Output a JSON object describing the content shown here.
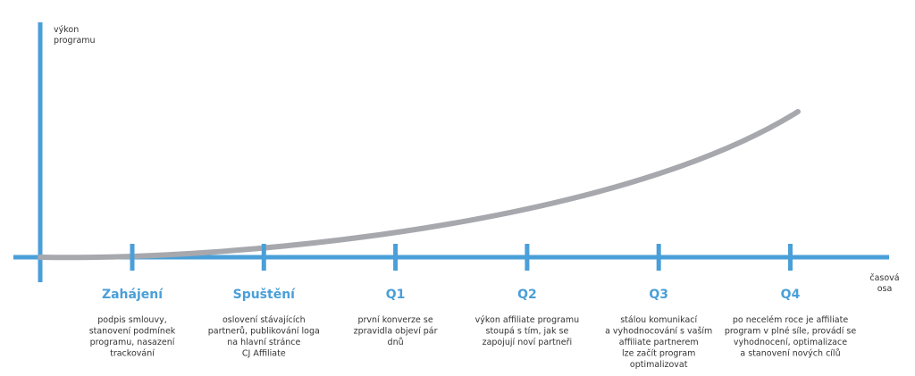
{
  "y_axis_label": [
    "výkon",
    "programu"
  ],
  "x_axis_label": [
    "časová",
    "osa"
  ],
  "milestones": [
    {
      "label": "Zahájení",
      "description": [
        "podpis smlouvy,",
        "stanovení podmínek",
        "programu, nasazení",
        "trackování"
      ]
    },
    {
      "label": "Spuštění",
      "description": [
        "oslovení stávajících",
        "partnerů, publikování loga",
        "na hlavní stránce",
        "CJ Affiliate"
      ]
    },
    {
      "label": "Q1",
      "description": [
        "první konverze se",
        "zpravidla objeví pár",
        "dnů"
      ]
    },
    {
      "label": "Q2",
      "description": [
        "výkon affiliate programu",
        "stoupá s tím, jak se",
        "zapojují noví partneři"
      ]
    },
    {
      "label": "Q3",
      "description": [
        "stálou komunikací",
        "a vyhodnocování s vaším",
        "affiliate partnerem",
        "lze začít program",
        "optimalizovat"
      ]
    },
    {
      "label": "Q4",
      "description": [
        "po necelém roce je affiliate",
        "program v plné síle, provádí se",
        "vyhodnocení, optimalizace",
        "a stanovení nových cílů"
      ]
    }
  ]
}
